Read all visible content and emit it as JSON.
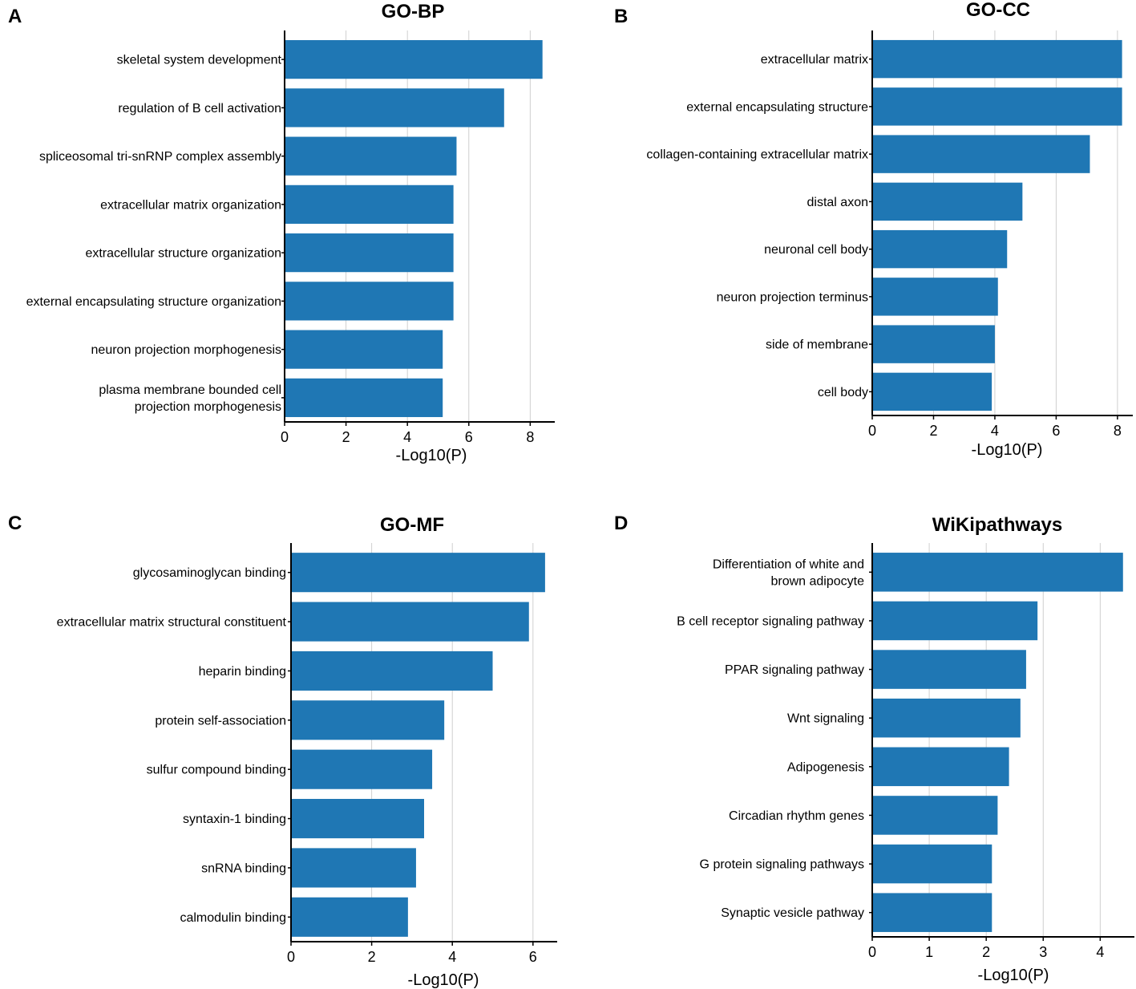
{
  "chart_data": [
    {
      "type": "bar",
      "orientation": "horizontal",
      "panel": "A",
      "title": "GO-BP",
      "xlabel": "-Log10(P)",
      "ylabel": "",
      "xlim": [
        0,
        8.8
      ],
      "xticks": [
        0,
        2,
        4,
        6,
        8
      ],
      "grid": true,
      "color": "#1f77b4",
      "categories": [
        [
          "skeletal system development"
        ],
        [
          "regulation of B cell activation"
        ],
        [
          "spliceosomal tri-snRNP complex assembly"
        ],
        [
          "extracellular matrix organization"
        ],
        [
          "extracellular structure organization"
        ],
        [
          "external encapsulating structure organization"
        ],
        [
          "neuron projection morphogenesis"
        ],
        [
          "plasma membrane bounded cell",
          "projection morphogenesis"
        ]
      ],
      "values": [
        8.4,
        7.15,
        5.6,
        5.5,
        5.5,
        5.5,
        5.15,
        5.15
      ]
    },
    {
      "type": "bar",
      "orientation": "horizontal",
      "panel": "B",
      "title": "GO-CC",
      "xlabel": "-Log10(P)",
      "ylabel": "",
      "xlim": [
        0,
        8.5
      ],
      "xticks": [
        0,
        2,
        4,
        6,
        8
      ],
      "grid": true,
      "color": "#1f77b4",
      "categories": [
        [
          "extracellular matrix"
        ],
        [
          "external encapsulating structure"
        ],
        [
          "collagen-containing extracellular matrix"
        ],
        [
          "distal axon"
        ],
        [
          "neuronal cell body"
        ],
        [
          "neuron projection terminus"
        ],
        [
          "side of membrane"
        ],
        [
          "cell body"
        ]
      ],
      "values": [
        8.15,
        8.15,
        7.1,
        4.9,
        4.4,
        4.1,
        4.0,
        3.9
      ]
    },
    {
      "type": "bar",
      "orientation": "horizontal",
      "panel": "C",
      "title": "GO-MF",
      "xlabel": "-Log10(P)",
      "ylabel": "",
      "xlim": [
        0,
        6.6
      ],
      "xticks": [
        0,
        2,
        4,
        6
      ],
      "grid": true,
      "color": "#1f77b4",
      "categories": [
        [
          "glycosaminoglycan binding"
        ],
        [
          "extracellular matrix structural constituent"
        ],
        [
          "heparin binding"
        ],
        [
          "protein self-association"
        ],
        [
          "sulfur compound binding"
        ],
        [
          "syntaxin-1 binding"
        ],
        [
          "snRNA binding"
        ],
        [
          "calmodulin binding"
        ]
      ],
      "values": [
        6.3,
        5.9,
        5.0,
        3.8,
        3.5,
        3.3,
        3.1,
        2.9
      ]
    },
    {
      "type": "bar",
      "orientation": "horizontal",
      "panel": "D",
      "title": "WiKipathways",
      "xlabel": "-Log10(P)",
      "ylabel": "",
      "xlim": [
        0,
        4.6
      ],
      "xticks": [
        0,
        1,
        2,
        3,
        4
      ],
      "grid": true,
      "color": "#1f77b4",
      "categories": [
        [
          "Differentiation of white and",
          "brown adipocyte"
        ],
        [
          "B cell receptor signaling pathway"
        ],
        [
          "PPAR signaling pathway"
        ],
        [
          "Wnt signaling"
        ],
        [
          "Adipogenesis"
        ],
        [
          "Circadian rhythm genes"
        ],
        [
          "G protein signaling pathways"
        ],
        [
          "Synaptic vesicle pathway"
        ]
      ],
      "values": [
        4.4,
        2.9,
        2.7,
        2.6,
        2.4,
        2.2,
        2.1,
        2.1
      ]
    }
  ]
}
